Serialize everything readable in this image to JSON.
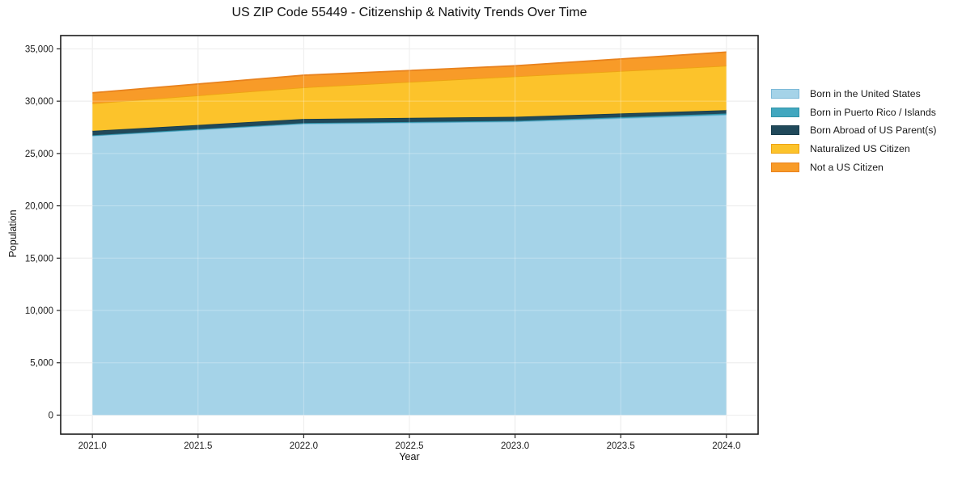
{
  "chart_data": {
    "type": "area",
    "stacked": true,
    "title": "US ZIP Code 55449 - Citizenship & Nativity Trends Over Time",
    "xlabel": "Year",
    "ylabel": "Population",
    "x": [
      2021,
      2022,
      2023,
      2024
    ],
    "series": [
      {
        "name": "Born in the United States",
        "values": [
          26700,
          27850,
          28050,
          28700
        ],
        "fill": "#a5d3e8",
        "line": "#7cb9d8"
      },
      {
        "name": "Born in Puerto Rico / Islands",
        "values": [
          40,
          60,
          70,
          120
        ],
        "fill": "#41a7bf",
        "line": "#2f93a8"
      },
      {
        "name": "Born Abroad of US Parent(s)",
        "values": [
          420,
          390,
          390,
          320
        ],
        "fill": "#20495a",
        "line": "#173c4b"
      },
      {
        "name": "Naturalized US Citizen",
        "values": [
          2630,
          3020,
          3860,
          4250
        ],
        "fill": "#fcc32b",
        "line": "#eda313"
      },
      {
        "name": "Not a US Citizen",
        "values": [
          1010,
          1160,
          1010,
          1300
        ],
        "fill": "#f89b28",
        "line": "#e8821e"
      }
    ],
    "totals": [
      30800,
      32480,
      33380,
      34690
    ],
    "x_ticks": [
      2021.0,
      2021.5,
      2022.0,
      2022.5,
      2023.0,
      2023.5,
      2024.0
    ],
    "x_tick_labels": [
      "2021.0",
      "2021.5",
      "2022.0",
      "2022.5",
      "2023.0",
      "2023.5",
      "2024.0"
    ],
    "y_ticks": [
      0,
      5000,
      10000,
      15000,
      20000,
      25000,
      30000,
      35000
    ],
    "y_tick_labels": [
      "0",
      "5,000",
      "10,000",
      "15,000",
      "20,000",
      "25,000",
      "30,000",
      "35,000"
    ],
    "xlim": [
      2020.85,
      2024.15
    ],
    "ylim": [
      -1820,
      36270
    ],
    "grid": true,
    "legend_position": "right",
    "colors": {
      "grid": "#e4e4e4",
      "spine": "#1c1c1c",
      "tick": "#262626",
      "text": "#1a1a1a",
      "background": "#ffffff"
    }
  }
}
